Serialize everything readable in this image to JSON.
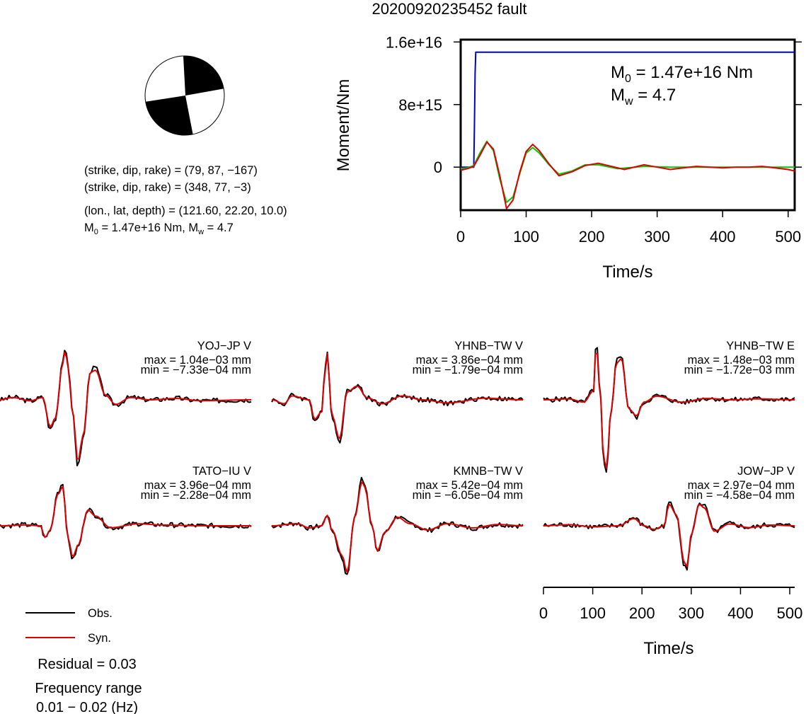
{
  "title": "20200920235452 fault",
  "beachball": {
    "lines": [
      "(strike, dip, rake) = (79, 87, −167)",
      "(strike, dip, rake) = (348, 77, −3)",
      "(lon., lat, depth) = (121.60, 22.20, 10.0)"
    ],
    "m0_line_main": "M",
    "m0_line_sub": "0",
    "m0_line_rest": " = 1.47e+16 Nm, M",
    "m0_line_sub2": "w",
    "m0_line_rest2": " = 4.7"
  },
  "chart_data": [
    {
      "type": "line",
      "name": "moment",
      "xlabel": "Time/s",
      "ylabel": "Moment/Nm",
      "xlim": [
        0,
        510
      ],
      "ylim": [
        -5500000000000000.0,
        1.63e+16
      ],
      "xticks": [
        "0",
        "100",
        "200",
        "300",
        "400",
        "500"
      ],
      "yticks": [
        "0",
        "8e+15",
        "1.6e+16"
      ],
      "annotation": {
        "m0_main": "M",
        "m0_sub": "0",
        "m0_rest": " = 1.47e+16 Nm",
        "mw_main": "M",
        "mw_sub": "w",
        "mw_rest": " = 4.7"
      },
      "series": [
        {
          "color": "#0000cc",
          "x": [
            0,
            20,
            21,
            22,
            23,
            510
          ],
          "y": [
            0,
            0,
            5000000000000000.0,
            1.2e+16,
            1.47e+16,
            1.47e+16
          ]
        },
        {
          "color": "#00cc00",
          "x": [
            0,
            10,
            20,
            30,
            40,
            50,
            60,
            70,
            80,
            90,
            100,
            110,
            120,
            135,
            150,
            170,
            190,
            210,
            240,
            280,
            320,
            360,
            400,
            450,
            510
          ],
          "y": [
            -200000000000000.0,
            -100000000000000.0,
            200000000000000.0,
            1900000000000000.0,
            3300000000000000.0,
            2100000000000000.0,
            -1600000000000000.0,
            -4500000000000000.0,
            -3800000000000000.0,
            -900000000000000.0,
            1800000000000000.0,
            2500000000000000.0,
            1800000000000000.0,
            300000000000000.0,
            -900000000000000.0,
            -500000000000000.0,
            300000000000000.0,
            300000000000000.0,
            -200000000000000.0,
            100000000000000.0,
            0,
            0,
            0,
            0,
            0
          ]
        },
        {
          "color": "#dd0000",
          "x": [
            0,
            10,
            20,
            30,
            40,
            50,
            60,
            70,
            80,
            90,
            100,
            110,
            120,
            135,
            150,
            170,
            190,
            210,
            230,
            250,
            270,
            280,
            300,
            320,
            340,
            360,
            380,
            400,
            420,
            440,
            460,
            480,
            500,
            510
          ],
          "y": [
            -400000000000000.0,
            -200000000000000.0,
            100000000000000.0,
            1600000000000000.0,
            3200000000000000.0,
            2300000000000000.0,
            -1200000000000000.0,
            -5300000000000000.0,
            -4200000000000000.0,
            -700000000000000.0,
            2000000000000000.0,
            2900000000000000.0,
            2100000000000000.0,
            400000000000000.0,
            -1100000000000000.0,
            -600000000000000.0,
            200000000000000.0,
            500000000000000.0,
            100000000000000.0,
            -300000000000000.0,
            100000000000000.0,
            300000000000000.0,
            0,
            -300000000000000.0,
            -100000000000000.0,
            100000000000000.0,
            0,
            -100000000000000.0,
            0,
            0,
            100000000000000.0,
            -100000000000000.0,
            -300000000000000.0,
            -500000000000000.0
          ]
        }
      ]
    },
    {
      "type": "line",
      "name": "waveforms",
      "xlabel": "Time/s",
      "xticks": [
        "0",
        "100",
        "200",
        "300",
        "400",
        "500"
      ],
      "xlim": [
        0,
        510
      ],
      "legend": [
        {
          "label": "Obs.",
          "color": "#000000"
        },
        {
          "label": "Syn.",
          "color": "#dd0000"
        }
      ],
      "stations": [
        {
          "label": "YOJ−JP V",
          "max": "max = 1.04e−03 mm",
          "min": "min = −7.33e−04 mm"
        },
        {
          "label": "YHNB−TW V",
          "max": "max = 3.86e−04 mm",
          "min": "min = −1.79e−04 mm"
        },
        {
          "label": "YHNB−TW E",
          "max": "max = 1.48e−03 mm",
          "min": "min = −1.72e−03 mm"
        },
        {
          "label": "TATO−IU V",
          "max": "max = 3.96e−04 mm",
          "min": "min = −2.28e−04 mm"
        },
        {
          "label": "KMNB−TW V",
          "max": "max = 5.42e−04 mm",
          "min": "min = −6.05e−04 mm"
        },
        {
          "label": "JOW−JP V",
          "max": "max = 2.97e−04 mm",
          "min": "min = −4.58e−04 mm"
        }
      ]
    }
  ],
  "residual": "Residual = 0.03",
  "freq_title": "Frequency range",
  "freq_value": "0.01 − 0.02 (Hz)"
}
